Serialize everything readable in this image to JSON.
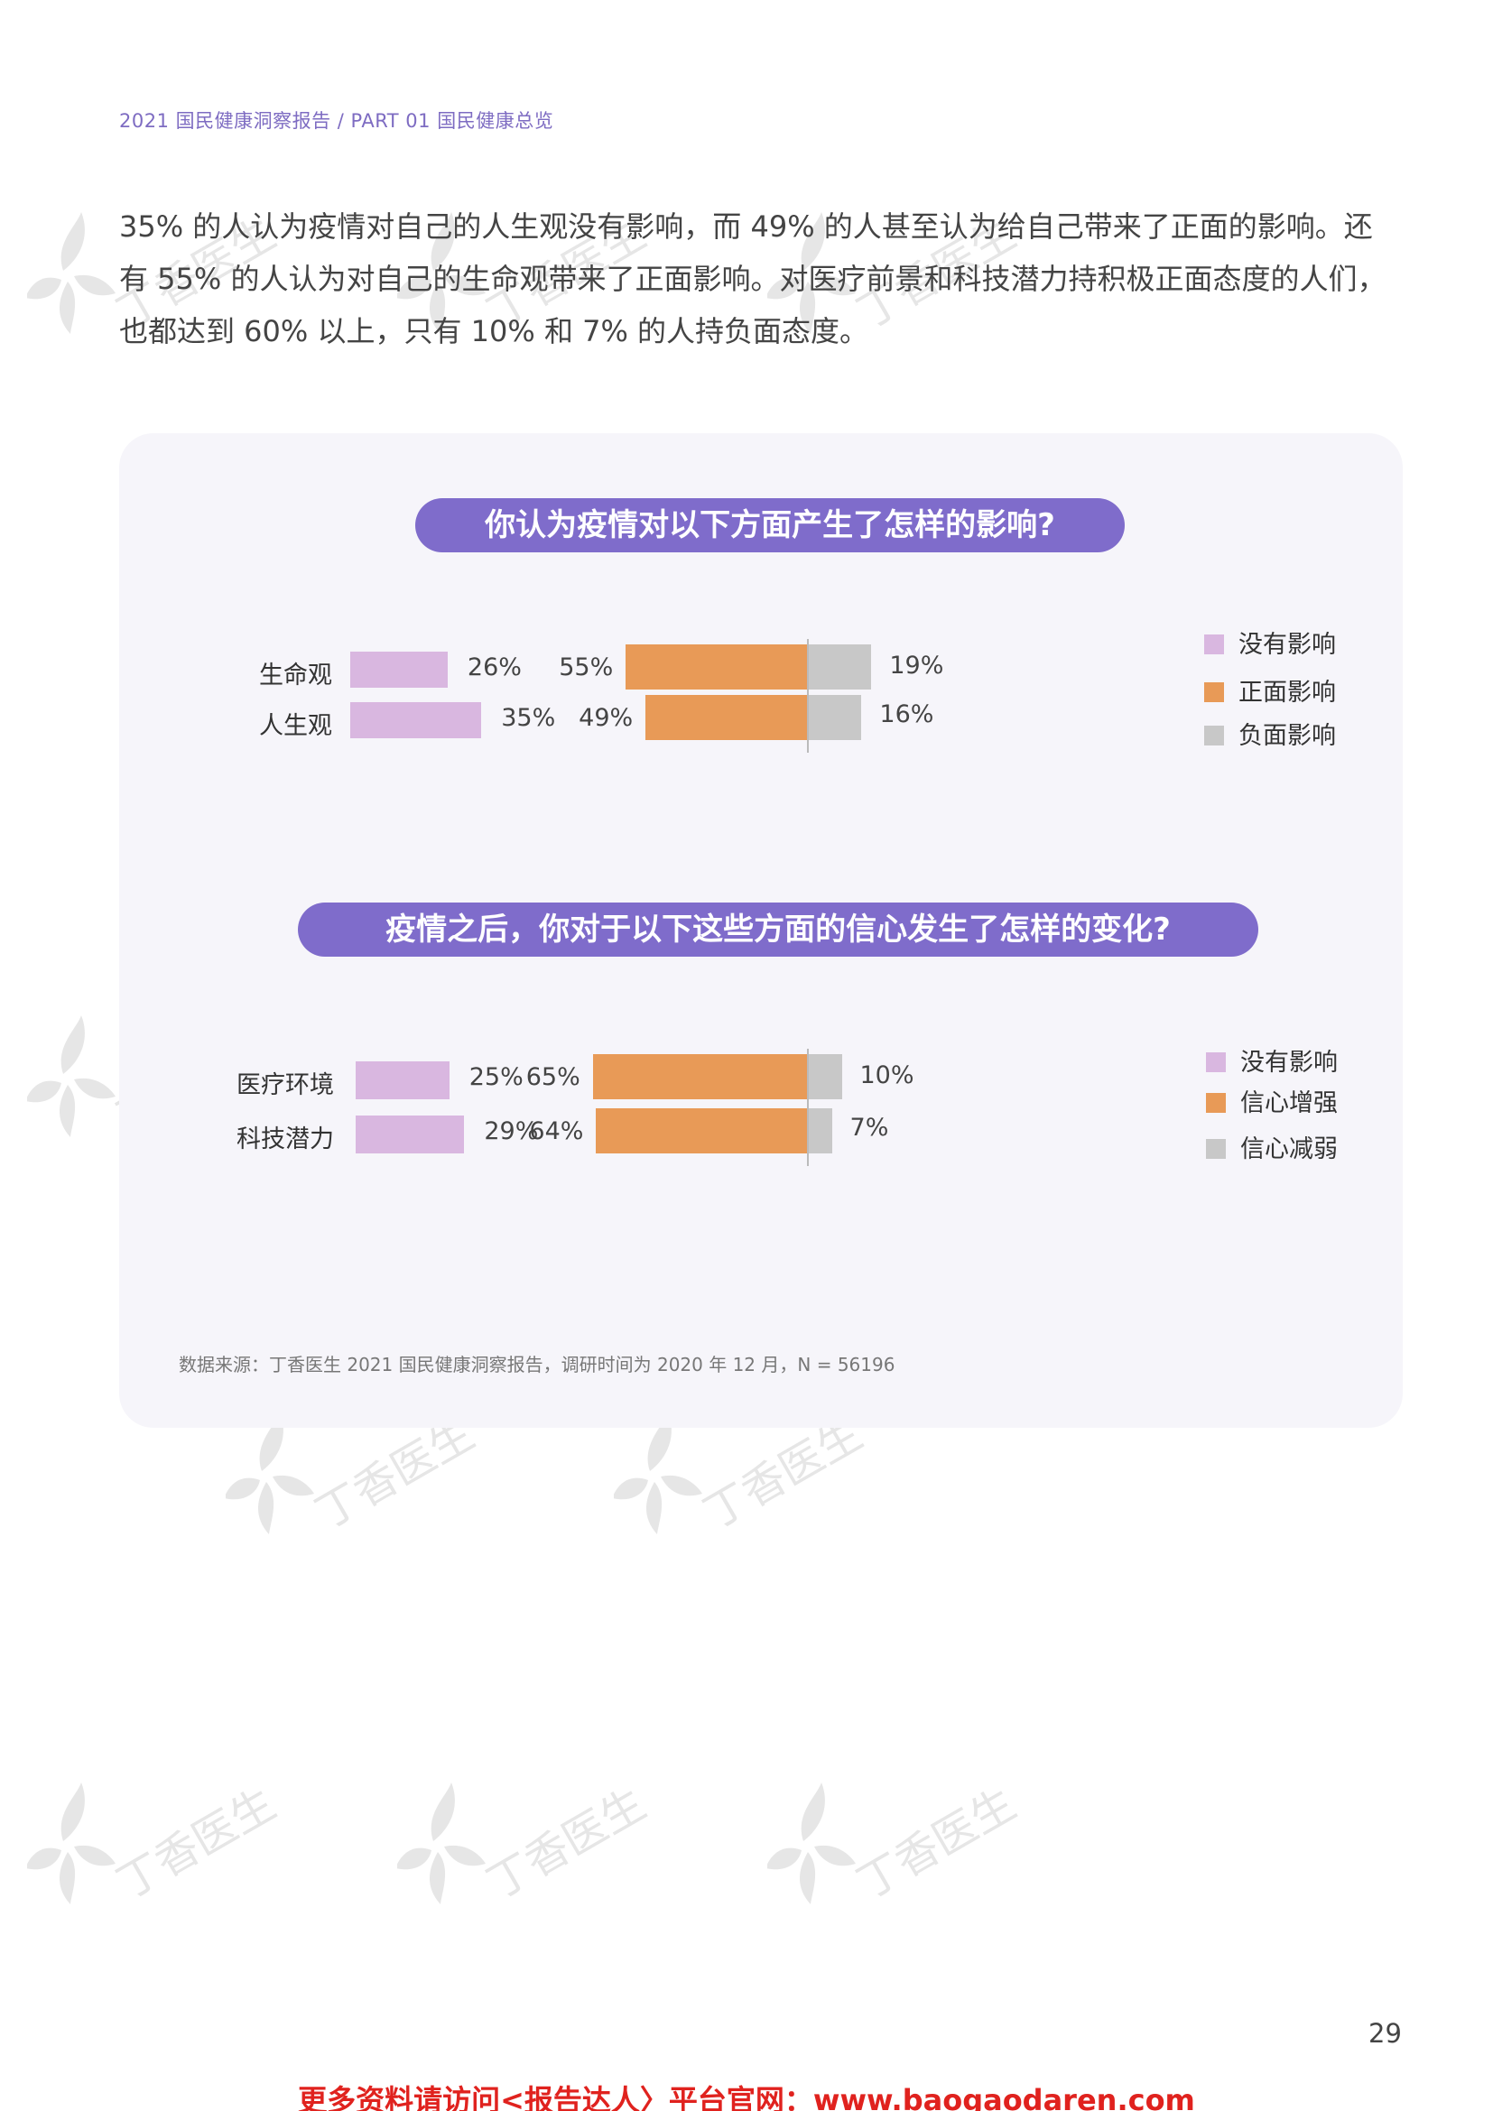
{
  "header": "2021 国民健康洞察报告 / PART 01 国民健康总览",
  "intro": "35% 的人认为疫情对自己的人生观没有影响，而 49% 的人甚至认为给自己带来了正面的影响。还有 55% 的人认为对自己的生命观带来了正面影响。对医疗前景和科技潜力持积极正面态度的人们，也都达到 60% 以上，只有 10% 和  7% 的人持负面态度。",
  "watermark_text": "丁香医生",
  "chart_data": [
    {
      "type": "bar",
      "title": "你认为疫情对以下方面产生了怎样的影响?",
      "categories": [
        "生命观",
        "人生观"
      ],
      "series": [
        {
          "name": "没有影响",
          "values": [
            26,
            35
          ],
          "labels": [
            "26%",
            "35%"
          ],
          "color": "#d9b7e0"
        },
        {
          "name": "正面影响",
          "values": [
            55,
            49
          ],
          "labels": [
            "55%",
            "49%"
          ],
          "color": "#e89a57"
        },
        {
          "name": "负面影响",
          "values": [
            19,
            16
          ],
          "labels": [
            "19%",
            "16%"
          ],
          "color": "#c8c8c8"
        }
      ]
    },
    {
      "type": "bar",
      "title": "疫情之后，你对于以下这些方面的信心发生了怎样的变化?",
      "categories": [
        "医疗环境",
        "科技潜力"
      ],
      "series": [
        {
          "name": "没有影响",
          "values": [
            25,
            29
          ],
          "labels": [
            "25%",
            "29%"
          ],
          "color": "#d9b7e0"
        },
        {
          "name": "信心增强",
          "values": [
            65,
            64
          ],
          "labels": [
            "65%",
            "64%"
          ],
          "color": "#e89a57"
        },
        {
          "name": "信心减弱",
          "values": [
            10,
            7
          ],
          "labels": [
            "10%",
            "7%"
          ],
          "color": "#c8c8c8"
        }
      ]
    }
  ],
  "source": "数据来源：丁香医生 2021 国民健康洞察报告，调研时间为 2020 年 12 月，N = 56196",
  "page_number": "29",
  "footer": "更多资料请访问<报告达人〉平台官网：www.baogaodaren.com"
}
